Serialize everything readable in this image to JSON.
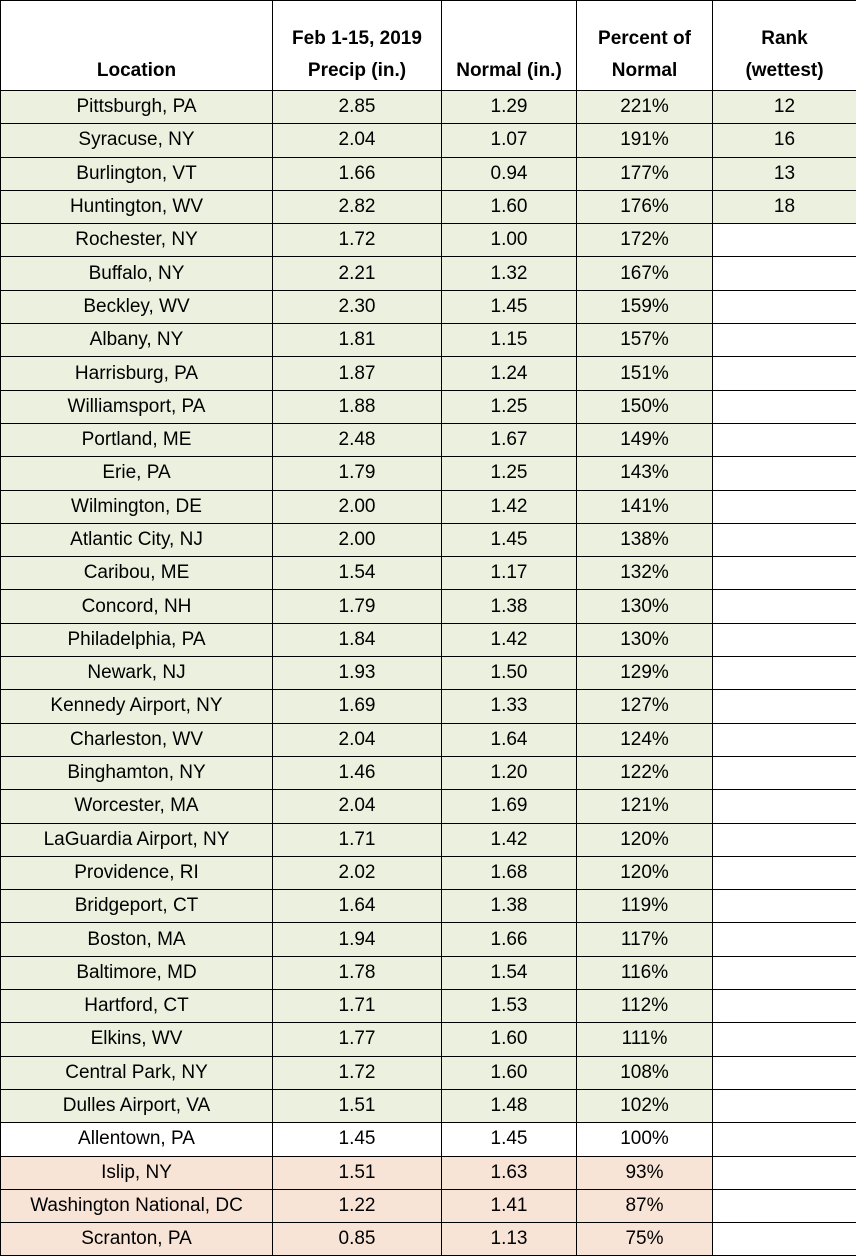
{
  "table": {
    "header": [
      [
        "Location"
      ],
      [
        "Feb 1-15, 2019",
        "Precip (in.)"
      ],
      [
        "Normal (in.)"
      ],
      [
        "Percent of",
        "Normal"
      ],
      [
        "Rank",
        "(wettest)"
      ]
    ],
    "rows": [
      [
        "Pittsburgh, PA",
        "2.85",
        "1.29",
        "221%",
        12
      ],
      [
        "Syracuse, NY",
        "2.04",
        "1.07",
        "191%",
        16
      ],
      [
        "Burlington, VT",
        "1.66",
        "0.94",
        "177%",
        13
      ],
      [
        "Huntington, WV",
        "2.82",
        "1.60",
        "176%",
        18
      ],
      [
        "Rochester, NY",
        "1.72",
        "1.00",
        "172%",
        null
      ],
      [
        "Buffalo, NY",
        "2.21",
        "1.32",
        "167%",
        null
      ],
      [
        "Beckley, WV",
        "2.30",
        "1.45",
        "159%",
        null
      ],
      [
        "Albany, NY",
        "1.81",
        "1.15",
        "157%",
        null
      ],
      [
        "Harrisburg, PA",
        "1.87",
        "1.24",
        "151%",
        null
      ],
      [
        "Williamsport, PA",
        "1.88",
        "1.25",
        "150%",
        null
      ],
      [
        "Portland, ME",
        "2.48",
        "1.67",
        "149%",
        null
      ],
      [
        "Erie, PA",
        "1.79",
        "1.25",
        "143%",
        null
      ],
      [
        "Wilmington, DE",
        "2.00",
        "1.42",
        "141%",
        null
      ],
      [
        "Atlantic City, NJ",
        "2.00",
        "1.45",
        "138%",
        null
      ],
      [
        "Caribou, ME",
        "1.54",
        "1.17",
        "132%",
        null
      ],
      [
        "Concord, NH",
        "1.79",
        "1.38",
        "130%",
        null
      ],
      [
        "Philadelphia, PA",
        "1.84",
        "1.42",
        "130%",
        null
      ],
      [
        "Newark, NJ",
        "1.93",
        "1.50",
        "129%",
        null
      ],
      [
        "Kennedy Airport, NY",
        "1.69",
        "1.33",
        "127%",
        null
      ],
      [
        "Charleston, WV",
        "2.04",
        "1.64",
        "124%",
        null
      ],
      [
        "Binghamton, NY",
        "1.46",
        "1.20",
        "122%",
        null
      ],
      [
        "Worcester, MA",
        "2.04",
        "1.69",
        "121%",
        null
      ],
      [
        "LaGuardia Airport, NY",
        "1.71",
        "1.42",
        "120%",
        null
      ],
      [
        "Providence, RI",
        "2.02",
        "1.68",
        "120%",
        null
      ],
      [
        "Bridgeport, CT",
        "1.64",
        "1.38",
        "119%",
        null
      ],
      [
        "Boston, MA",
        "1.94",
        "1.66",
        "117%",
        null
      ],
      [
        "Baltimore, MD",
        "1.78",
        "1.54",
        "116%",
        null
      ],
      [
        "Hartford, CT",
        "1.71",
        "1.53",
        "112%",
        null
      ],
      [
        "Elkins, WV",
        "1.77",
        "1.60",
        "111%",
        null
      ],
      [
        "Central Park, NY",
        "1.72",
        "1.60",
        "108%",
        null
      ],
      [
        "Dulles Airport, VA",
        "1.51",
        "1.48",
        "102%",
        null
      ],
      [
        "Allentown, PA",
        "1.45",
        "1.45",
        "100%",
        null
      ],
      [
        "Islip, NY",
        "1.51",
        "1.63",
        "93%",
        null
      ],
      [
        "Washington National, DC",
        "1.22",
        "1.41",
        "87%",
        null
      ],
      [
        "Scranton, PA",
        "0.85",
        "1.13",
        "75%",
        null
      ]
    ]
  }
}
